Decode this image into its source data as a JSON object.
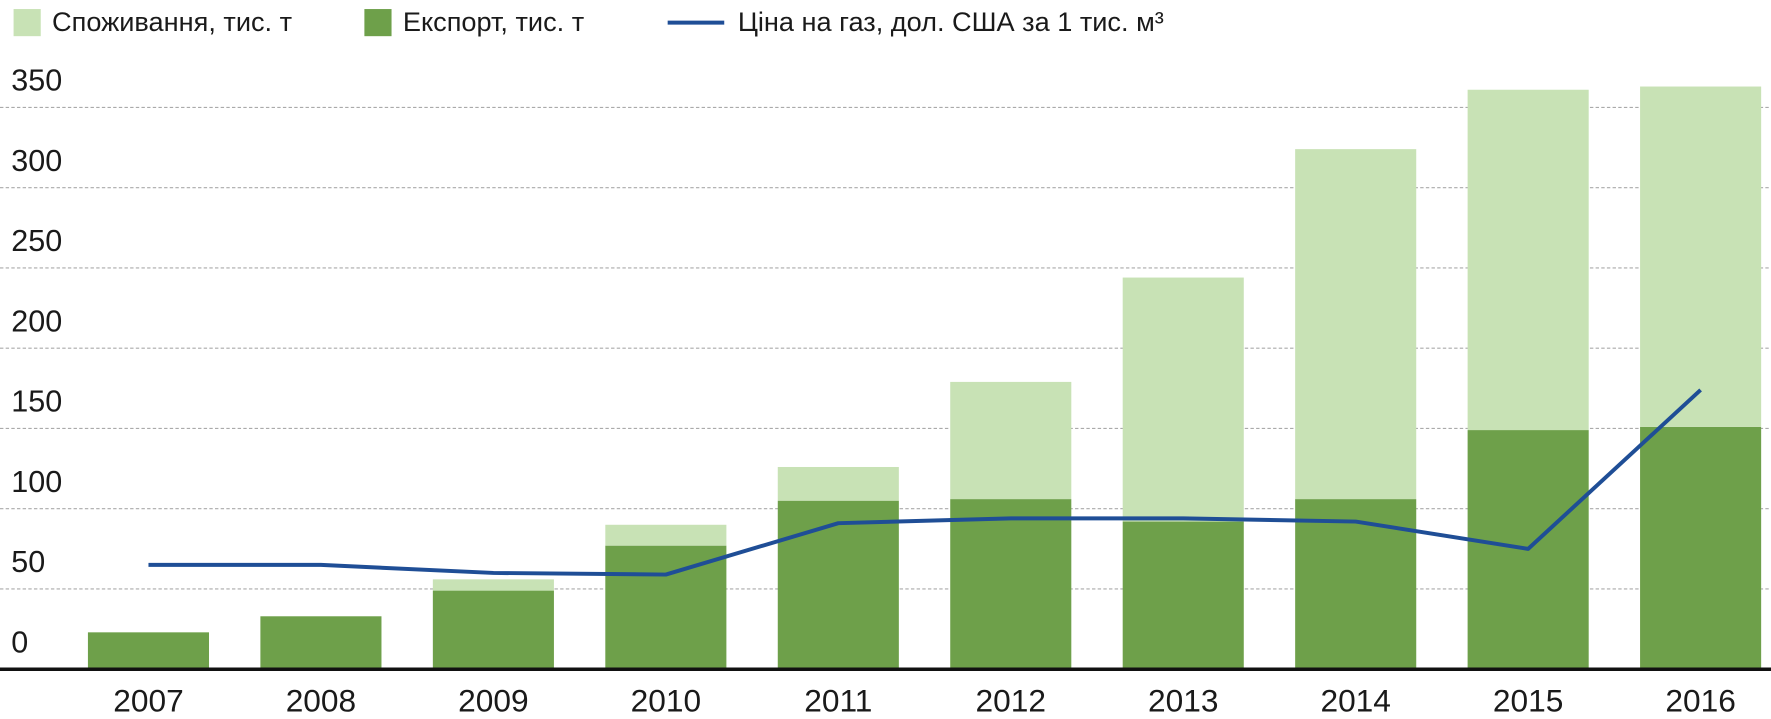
{
  "chart_data": {
    "type": "bar",
    "categories": [
      "2007",
      "2008",
      "2009",
      "2010",
      "2011",
      "2012",
      "2013",
      "2014",
      "2015",
      "2016"
    ],
    "series": [
      {
        "name": "Експорт,  тис. т",
        "type": "bar",
        "color": "#6ea04a",
        "values": [
          23,
          33,
          49,
          77,
          105,
          106,
          92,
          106,
          149,
          151
        ]
      },
      {
        "name": "Споживання,  тис. т",
        "type": "bar",
        "color": "#c8e2b5",
        "values": [
          0,
          0,
          7,
          13,
          21,
          73,
          152,
          218,
          212,
          212
        ]
      },
      {
        "name": "Ціна на газ, дол. США за 1 тис. м³",
        "type": "line",
        "color": "#1f4e96",
        "values": [
          65,
          65,
          60,
          59,
          91,
          94,
          94,
          92,
          75,
          174
        ]
      }
    ],
    "ylim": [
      0,
      370
    ],
    "yticks": [
      0,
      50,
      100,
      150,
      200,
      250,
      300,
      350
    ],
    "grid": true,
    "legend": "top"
  }
}
